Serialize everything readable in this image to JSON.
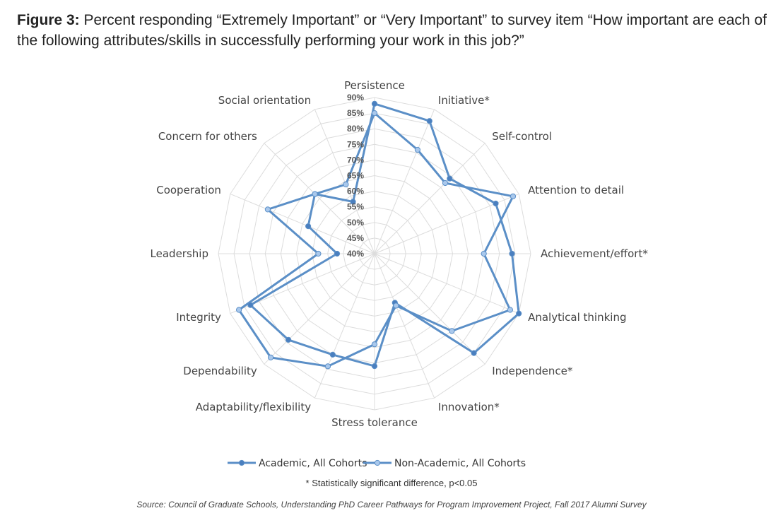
{
  "figure": {
    "label": "Figure 3:",
    "text": "Percent responding “Extremely Important” or “Very Important” to survey item “How important are each of the following attributes/skills in successfully performing your work in this job?”"
  },
  "note": "* Statistically significant difference, p<0.05",
  "source": "Source: Council of Graduate Schools, Understanding PhD Career Pathways for Program Improvement Project, Fall 2017 Alumni Survey",
  "colors": {
    "series_line": "#5b8fc7",
    "academic_marker": "#4a7fbf",
    "nonacademic_marker": "#a9c8ec",
    "grid": "#dcdcdc"
  },
  "chart_data": {
    "type": "radar",
    "categories": [
      "Persistence",
      "Initiative*",
      "Self-control",
      "Attention to detail",
      "Achievement/effort*",
      "Analytical thinking",
      "Independence*",
      "Innovation*",
      "Stress tolerance",
      "Adaptability/flexibility",
      "Dependability",
      "Integrity",
      "Leadership",
      "Cooperation",
      "Concern for others",
      "Social orientation"
    ],
    "r_ticks": [
      "40%",
      "45%",
      "50%",
      "55%",
      "60%",
      "65%",
      "70%",
      "75%",
      "80%",
      "85%",
      "90%"
    ],
    "rlim": [
      40,
      90
    ],
    "grid": true,
    "legend_position": "bottom",
    "series": [
      {
        "name": "Academic, All Cohorts",
        "values": [
          88,
          86,
          74,
          82,
          84,
          90,
          85,
          57,
          76,
          75,
          79,
          83,
          52,
          63,
          67,
          58
        ]
      },
      {
        "name": "Non-Academic, All Cohorts",
        "values": [
          85,
          76,
          72,
          88,
          75,
          87,
          75,
          58,
          69,
          79,
          87,
          87,
          58,
          77,
          67,
          64
        ]
      }
    ]
  }
}
